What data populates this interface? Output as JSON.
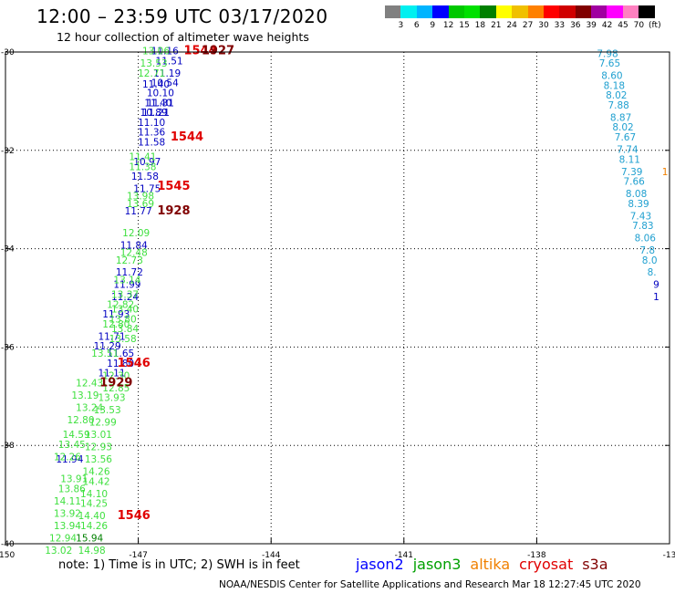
{
  "header": {
    "title": "12:00 – 23:59 UTC 03/17/2020",
    "subtitle": "12 hour collection of altimeter wave heights"
  },
  "colorbar": {
    "colors": [
      "#808080",
      "#00f0f0",
      "#00b4ff",
      "#0000ff",
      "#00c800",
      "#00e000",
      "#008000",
      "#ffff00",
      "#f0c000",
      "#ff8000",
      "#ff0000",
      "#d00000",
      "#800000",
      "#a000a0",
      "#ff00ff",
      "#ff80c0",
      "#000000"
    ],
    "labels": [
      "3",
      "6",
      "9",
      "12",
      "15",
      "18",
      "21",
      "24",
      "27",
      "30",
      "33",
      "36",
      "39",
      "42",
      "45",
      "70",
      "(ft)"
    ]
  },
  "map": {
    "lon_ticks": [
      "-150",
      "-147",
      "-144",
      "-141",
      "-138",
      "-13"
    ],
    "lat_ticks": [
      "-30",
      "-32",
      "-34",
      "-36",
      "-38",
      "-40"
    ]
  },
  "chart_data": {
    "type": "scatter",
    "x_axis": "longitude",
    "y_axis": "latitude",
    "xlim": [
      -150,
      -135
    ],
    "ylim": [
      -40,
      -30
    ],
    "series": [
      {
        "name": "jason2",
        "color": "#0000c0",
        "points": [
          {
            "lon": -146.4,
            "lat": -30.05,
            "label": "11.16"
          },
          {
            "lon": -146.3,
            "lat": -30.25,
            "label": "11.51"
          },
          {
            "lon": -146.35,
            "lat": -30.5,
            "label": "11.19"
          },
          {
            "lon": -146.4,
            "lat": -30.7,
            "label": "10.54"
          },
          {
            "lon": -146.6,
            "lat": -30.72,
            "label": "11.40"
          },
          {
            "lon": -146.5,
            "lat": -30.9,
            "label": "10.10"
          },
          {
            "lon": -146.55,
            "lat": -31.1,
            "label": "11.40"
          },
          {
            "lon": -146.6,
            "lat": -31.3,
            "label": "11.21"
          },
          {
            "lon": -146.5,
            "lat": -31.1,
            "label": "11.31"
          },
          {
            "lon": -146.65,
            "lat": -31.3,
            "label": "10.89"
          },
          {
            "lon": -146.7,
            "lat": -31.5,
            "label": "11.10"
          },
          {
            "lon": -146.7,
            "lat": -31.7,
            "label": "11.36"
          },
          {
            "lon": -146.7,
            "lat": -31.9,
            "label": "11.58"
          },
          {
            "lon": -146.8,
            "lat": -32.3,
            "label": "10.97"
          },
          {
            "lon": -146.85,
            "lat": -32.6,
            "label": "11.58"
          },
          {
            "lon": -146.8,
            "lat": -32.85,
            "label": "11.75"
          },
          {
            "lon": -147.0,
            "lat": -33.3,
            "label": "11.77"
          },
          {
            "lon": -147.1,
            "lat": -34.0,
            "label": "11.84"
          },
          {
            "lon": -147.2,
            "lat": -34.55,
            "label": "11.72"
          },
          {
            "lon": -147.25,
            "lat": -34.8,
            "label": "11.99"
          },
          {
            "lon": -147.3,
            "lat": -35.05,
            "label": "11.24"
          },
          {
            "lon": -147.5,
            "lat": -35.4,
            "label": "11.93"
          },
          {
            "lon": -147.6,
            "lat": -35.85,
            "label": "11.71"
          },
          {
            "lon": -147.7,
            "lat": -36.05,
            "label": "11.29"
          },
          {
            "lon": -147.4,
            "lat": -36.2,
            "label": "11.65"
          },
          {
            "lon": -147.4,
            "lat": -36.4,
            "label": "11.80"
          },
          {
            "lon": -147.6,
            "lat": -36.6,
            "label": "11.11"
          },
          {
            "lon": -148.55,
            "lat": -38.35,
            "label": "11.94"
          }
        ]
      },
      {
        "name": "jason3",
        "color": "#40e040",
        "points": [
          {
            "lon": -146.6,
            "lat": -30.05,
            "label": "13.06"
          },
          {
            "lon": -146.65,
            "lat": -30.3,
            "label": "13.53"
          },
          {
            "lon": -146.7,
            "lat": -30.5,
            "label": "12.71"
          },
          {
            "lon": -146.9,
            "lat": -32.2,
            "label": "11.41"
          },
          {
            "lon": -146.9,
            "lat": -32.4,
            "label": "11.38"
          },
          {
            "lon": -146.95,
            "lat": -33.0,
            "label": "13.98"
          },
          {
            "lon": -146.95,
            "lat": -33.15,
            "label": "13.69"
          },
          {
            "lon": -147.05,
            "lat": -33.75,
            "label": "12.09"
          },
          {
            "lon": -147.1,
            "lat": -34.15,
            "label": "12.48"
          },
          {
            "lon": -147.2,
            "lat": -34.3,
            "label": "12.73"
          },
          {
            "lon": -147.25,
            "lat": -34.7,
            "label": "13.14"
          },
          {
            "lon": -147.3,
            "lat": -35.0,
            "label": "13.37"
          },
          {
            "lon": -147.4,
            "lat": -35.2,
            "label": "12.82"
          },
          {
            "lon": -147.3,
            "lat": -35.3,
            "label": "13.40"
          },
          {
            "lon": -147.35,
            "lat": -35.5,
            "label": "13.80"
          },
          {
            "lon": -147.5,
            "lat": -35.6,
            "label": "12.80"
          },
          {
            "lon": -147.3,
            "lat": -35.7,
            "label": "13.84"
          },
          {
            "lon": -147.35,
            "lat": -35.9,
            "label": "13.58"
          },
          {
            "lon": -147.75,
            "lat": -36.2,
            "label": "13.51"
          },
          {
            "lon": -147.5,
            "lat": -36.65,
            "label": "12.30"
          },
          {
            "lon": -148.1,
            "lat": -36.8,
            "label": "12.43"
          },
          {
            "lon": -147.5,
            "lat": -36.9,
            "label": "12.85"
          },
          {
            "lon": -148.2,
            "lat": -37.05,
            "label": "13.19"
          },
          {
            "lon": -147.6,
            "lat": -37.1,
            "label": "13.93"
          },
          {
            "lon": -148.1,
            "lat": -37.3,
            "label": "13.24"
          },
          {
            "lon": -147.7,
            "lat": -37.35,
            "label": "13.53"
          },
          {
            "lon": -148.3,
            "lat": -37.55,
            "label": "12.80"
          },
          {
            "lon": -147.8,
            "lat": -37.6,
            "label": "12.99"
          },
          {
            "lon": -148.4,
            "lat": -37.85,
            "label": "14.59"
          },
          {
            "lon": -147.9,
            "lat": -37.85,
            "label": "13.01"
          },
          {
            "lon": -148.5,
            "lat": -38.05,
            "label": "13.45"
          },
          {
            "lon": -147.9,
            "lat": -38.1,
            "label": "12.93"
          },
          {
            "lon": -148.6,
            "lat": -38.3,
            "label": "12.26"
          },
          {
            "lon": -147.9,
            "lat": -38.35,
            "label": "13.56"
          },
          {
            "lon": -148.45,
            "lat": -38.75,
            "label": "13.91"
          },
          {
            "lon": -147.95,
            "lat": -38.6,
            "label": "14.26"
          },
          {
            "lon": -148.5,
            "lat": -38.95,
            "label": "13.86"
          },
          {
            "lon": -147.95,
            "lat": -38.8,
            "label": "14.42"
          },
          {
            "lon": -148.6,
            "lat": -39.2,
            "label": "14.11"
          },
          {
            "lon": -148.0,
            "lat": -39.05,
            "label": "14.10"
          },
          {
            "lon": -148.0,
            "lat": -39.25,
            "label": "14.25"
          },
          {
            "lon": -148.6,
            "lat": -39.45,
            "label": "13.92"
          },
          {
            "lon": -148.05,
            "lat": -39.5,
            "label": "14.40"
          },
          {
            "lon": -148.6,
            "lat": -39.7,
            "label": "13.94"
          },
          {
            "lon": -148.0,
            "lat": -39.7,
            "label": "14.26"
          },
          {
            "lon": -148.7,
            "lat": -39.95,
            "label": "12.94"
          },
          {
            "lon": -148.8,
            "lat": -40.2,
            "label": "13.02"
          },
          {
            "lon": -148.05,
            "lat": -40.2,
            "label": "14.98"
          }
        ]
      },
      {
        "name": "jason3-dark",
        "color": "#008000",
        "points": [
          {
            "lon": -148.1,
            "lat": -39.95,
            "label": "15.94"
          }
        ]
      },
      {
        "name": "cryosat",
        "color": "#e00000",
        "points": [
          {
            "lon": -145.6,
            "lat": -30.05,
            "label": "1544"
          },
          {
            "lon": -145.9,
            "lat": -31.8,
            "label": "1544"
          },
          {
            "lon": -146.2,
            "lat": -32.8,
            "label": "1545"
          },
          {
            "lon": -147.1,
            "lat": -36.4,
            "label": "1546"
          },
          {
            "lon": -147.1,
            "lat": -39.5,
            "label": "1546"
          }
        ]
      },
      {
        "name": "cryosat-dark",
        "color": "#800000",
        "points": [
          {
            "lon": -145.2,
            "lat": -30.05,
            "label": "1927"
          },
          {
            "lon": -146.2,
            "lat": -33.3,
            "label": "1928"
          },
          {
            "lon": -147.5,
            "lat": -36.8,
            "label": "1929"
          }
        ]
      },
      {
        "name": "right-track",
        "color": "#20a0d0",
        "points": [
          {
            "lon": -136.4,
            "lat": -30.1,
            "label": "7.98"
          },
          {
            "lon": -136.35,
            "lat": -30.3,
            "label": "7.65"
          },
          {
            "lon": -136.3,
            "lat": -30.55,
            "label": "8.60"
          },
          {
            "lon": -136.25,
            "lat": -30.75,
            "label": "8.18"
          },
          {
            "lon": -136.2,
            "lat": -30.95,
            "label": "8.02"
          },
          {
            "lon": -136.15,
            "lat": -31.15,
            "label": "7.88"
          },
          {
            "lon": -136.1,
            "lat": -31.4,
            "label": "8.87"
          },
          {
            "lon": -136.05,
            "lat": -31.6,
            "label": "8.02"
          },
          {
            "lon": -136.0,
            "lat": -31.8,
            "label": "7.67"
          },
          {
            "lon": -135.95,
            "lat": -32.05,
            "label": "7.74"
          },
          {
            "lon": -135.9,
            "lat": -32.25,
            "label": "8.11"
          },
          {
            "lon": -135.85,
            "lat": -32.5,
            "label": "7.39"
          },
          {
            "lon": -135.8,
            "lat": -32.7,
            "label": "7.66"
          },
          {
            "lon": -135.75,
            "lat": -32.95,
            "label": "8.08"
          },
          {
            "lon": -135.7,
            "lat": -33.15,
            "label": "8.39"
          },
          {
            "lon": -135.65,
            "lat": -33.4,
            "label": "7.43"
          },
          {
            "lon": -135.6,
            "lat": -33.6,
            "label": "7.83"
          },
          {
            "lon": -135.55,
            "lat": -33.85,
            "label": "8.06"
          },
          {
            "lon": -135.5,
            "lat": -34.1,
            "label": "7.8"
          },
          {
            "lon": -135.45,
            "lat": -34.3,
            "label": "8.0"
          },
          {
            "lon": -135.4,
            "lat": -34.55,
            "label": "8."
          }
        ]
      },
      {
        "name": "right-track-blue",
        "color": "#0000c0",
        "points": [
          {
            "lon": -135.3,
            "lat": -34.8,
            "label": "9"
          },
          {
            "lon": -135.3,
            "lat": -35.05,
            "label": "1"
          }
        ]
      },
      {
        "name": "right-altika",
        "color": "#f08000",
        "points": [
          {
            "lon": -135.1,
            "lat": -32.5,
            "label": "1"
          }
        ]
      }
    ]
  },
  "footer": {
    "note": "note:  1) Time is in UTC;  2) SWH is in feet",
    "satellites": [
      {
        "name": "jason2",
        "color": "#0000ff"
      },
      {
        "name": "jason3",
        "color": "#00a000"
      },
      {
        "name": "altika",
        "color": "#f08000"
      },
      {
        "name": "cryosat",
        "color": "#e00000"
      },
      {
        "name": "s3a",
        "color": "#800000"
      }
    ],
    "credit": "NOAA/NESDIS Center for Satellite Applications and Research    Mar 18 12:27:45 UTC 2020"
  }
}
